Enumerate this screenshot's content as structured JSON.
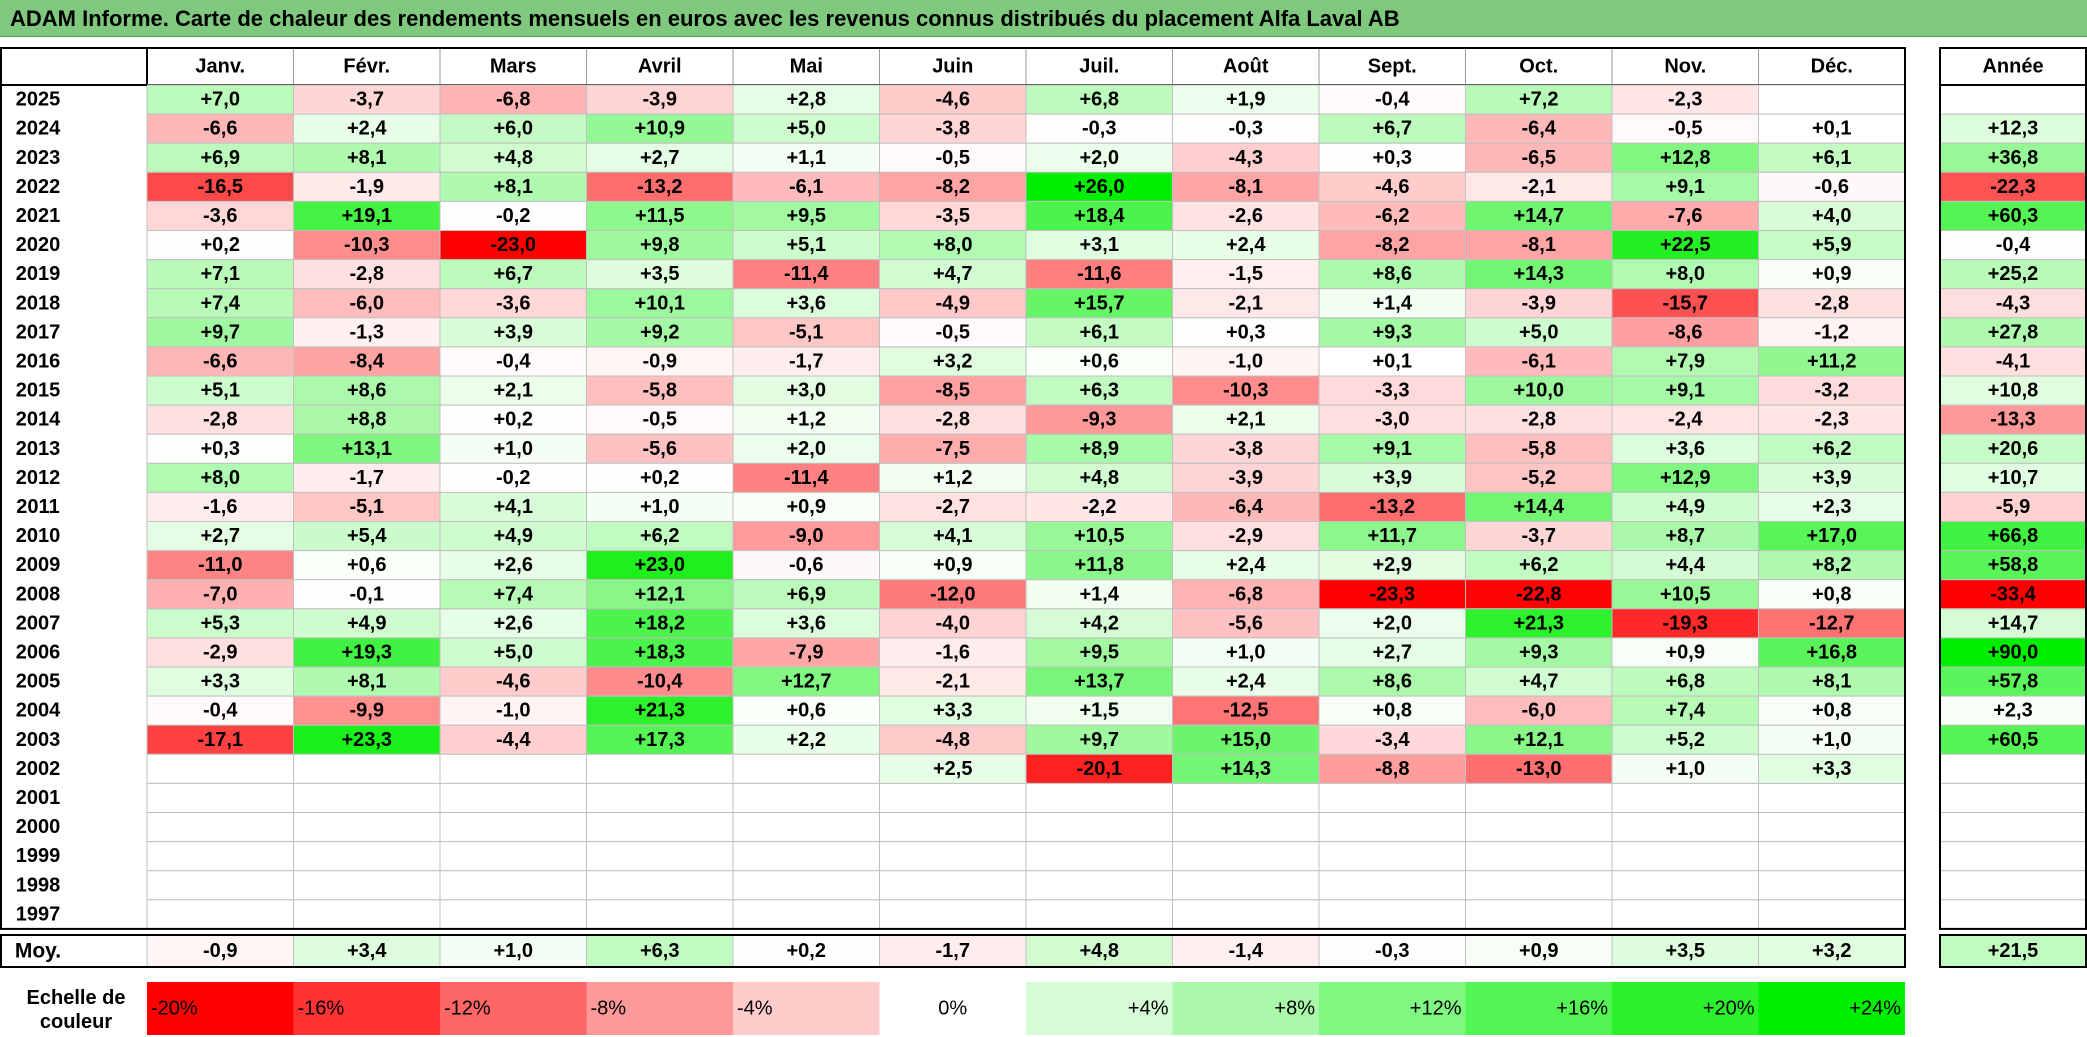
{
  "title": "ADAM Informe. Carte de chaleur des rendements mensuels en euros avec les revenus connus distribués du placement Alfa Laval AB",
  "chart_data": {
    "type": "heatmap",
    "title": "ADAM Informe. Carte de chaleur des rendements mensuels en euros avec les revenus connus distribués du placement Alfa Laval AB",
    "months": [
      "Janv.",
      "Févr.",
      "Mars",
      "Avril",
      "Mai",
      "Juin",
      "Juil.",
      "Août",
      "Sept.",
      "Oct.",
      "Nov.",
      "Déc."
    ],
    "year_header": "Année",
    "rows": [
      {
        "year": "2025",
        "values": [
          "+7,0",
          "-3,7",
          "-6,8",
          "-3,9",
          "+2,8",
          "-4,6",
          "+6,8",
          "+1,9",
          "-0,4",
          "+7,2",
          "-2,3",
          ""
        ],
        "annual": ""
      },
      {
        "year": "2024",
        "values": [
          "-6,6",
          "+2,4",
          "+6,0",
          "+10,9",
          "+5,0",
          "-3,8",
          "-0,3",
          "-0,3",
          "+6,7",
          "-6,4",
          "-0,5",
          "+0,1"
        ],
        "annual": "+12,3"
      },
      {
        "year": "2023",
        "values": [
          "+6,9",
          "+8,1",
          "+4,8",
          "+2,7",
          "+1,1",
          "-0,5",
          "+2,0",
          "-4,3",
          "+0,3",
          "-6,5",
          "+12,8",
          "+6,1"
        ],
        "annual": "+36,8"
      },
      {
        "year": "2022",
        "values": [
          "-16,5",
          "-1,9",
          "+8,1",
          "-13,2",
          "-6,1",
          "-8,2",
          "+26,0",
          "-8,1",
          "-4,6",
          "-2,1",
          "+9,1",
          "-0,6"
        ],
        "annual": "-22,3"
      },
      {
        "year": "2021",
        "values": [
          "-3,6",
          "+19,1",
          "-0,2",
          "+11,5",
          "+9,5",
          "-3,5",
          "+18,4",
          "-2,6",
          "-6,2",
          "+14,7",
          "-7,6",
          "+4,0"
        ],
        "annual": "+60,3"
      },
      {
        "year": "2020",
        "values": [
          "+0,2",
          "-10,3",
          "-23,0",
          "+9,8",
          "+5,1",
          "+8,0",
          "+3,1",
          "+2,4",
          "-8,2",
          "-8,1",
          "+22,5",
          "+5,9"
        ],
        "annual": "-0,4"
      },
      {
        "year": "2019",
        "values": [
          "+7,1",
          "-2,8",
          "+6,7",
          "+3,5",
          "-11,4",
          "+4,7",
          "-11,6",
          "-1,5",
          "+8,6",
          "+14,3",
          "+8,0",
          "+0,9"
        ],
        "annual": "+25,2"
      },
      {
        "year": "2018",
        "values": [
          "+7,4",
          "-6,0",
          "-3,6",
          "+10,1",
          "+3,6",
          "-4,9",
          "+15,7",
          "-2,1",
          "+1,4",
          "-3,9",
          "-15,7",
          "-2,8"
        ],
        "annual": "-4,3"
      },
      {
        "year": "2017",
        "values": [
          "+9,7",
          "-1,3",
          "+3,9",
          "+9,2",
          "-5,1",
          "-0,5",
          "+6,1",
          "+0,3",
          "+9,3",
          "+5,0",
          "-8,6",
          "-1,2"
        ],
        "annual": "+27,8"
      },
      {
        "year": "2016",
        "values": [
          "-6,6",
          "-8,4",
          "-0,4",
          "-0,9",
          "-1,7",
          "+3,2",
          "+0,6",
          "-1,0",
          "+0,1",
          "-6,1",
          "+7,9",
          "+11,2"
        ],
        "annual": "-4,1"
      },
      {
        "year": "2015",
        "values": [
          "+5,1",
          "+8,6",
          "+2,1",
          "-5,8",
          "+3,0",
          "-8,5",
          "+6,3",
          "-10,3",
          "-3,3",
          "+10,0",
          "+9,1",
          "-3,2"
        ],
        "annual": "+10,8"
      },
      {
        "year": "2014",
        "values": [
          "-2,8",
          "+8,8",
          "+0,2",
          "-0,5",
          "+1,2",
          "-2,8",
          "-9,3",
          "+2,1",
          "-3,0",
          "-2,8",
          "-2,4",
          "-2,3"
        ],
        "annual": "-13,3"
      },
      {
        "year": "2013",
        "values": [
          "+0,3",
          "+13,1",
          "+1,0",
          "-5,6",
          "+2,0",
          "-7,5",
          "+8,9",
          "-3,8",
          "+9,1",
          "-5,8",
          "+3,6",
          "+6,2"
        ],
        "annual": "+20,6"
      },
      {
        "year": "2012",
        "values": [
          "+8,0",
          "-1,7",
          "-0,2",
          "+0,2",
          "-11,4",
          "+1,2",
          "+4,8",
          "-3,9",
          "+3,9",
          "-5,2",
          "+12,9",
          "+3,9"
        ],
        "annual": "+10,7"
      },
      {
        "year": "2011",
        "values": [
          "-1,6",
          "-5,1",
          "+4,1",
          "+1,0",
          "+0,9",
          "-2,7",
          "-2,2",
          "-6,4",
          "-13,2",
          "+14,4",
          "+4,9",
          "+2,3"
        ],
        "annual": "-5,9"
      },
      {
        "year": "2010",
        "values": [
          "+2,7",
          "+5,4",
          "+4,9",
          "+6,2",
          "-9,0",
          "+4,1",
          "+10,5",
          "-2,9",
          "+11,7",
          "-3,7",
          "+8,7",
          "+17,0"
        ],
        "annual": "+66,8"
      },
      {
        "year": "2009",
        "values": [
          "-11,0",
          "+0,6",
          "+2,6",
          "+23,0",
          "-0,6",
          "+0,9",
          "+11,8",
          "+2,4",
          "+2,9",
          "+6,2",
          "+4,4",
          "+8,2"
        ],
        "annual": "+58,8"
      },
      {
        "year": "2008",
        "values": [
          "-7,0",
          "-0,1",
          "+7,4",
          "+12,1",
          "+6,9",
          "-12,0",
          "+1,4",
          "-6,8",
          "-23,3",
          "-22,8",
          "+10,5",
          "+0,8"
        ],
        "annual": "-33,4"
      },
      {
        "year": "2007",
        "values": [
          "+5,3",
          "+4,9",
          "+2,6",
          "+18,2",
          "+3,6",
          "-4,0",
          "+4,2",
          "-5,6",
          "+2,0",
          "+21,3",
          "-19,3",
          "-12,7"
        ],
        "annual": "+14,7"
      },
      {
        "year": "2006",
        "values": [
          "-2,9",
          "+19,3",
          "+5,0",
          "+18,3",
          "-7,9",
          "-1,6",
          "+9,5",
          "+1,0",
          "+2,7",
          "+9,3",
          "+0,9",
          "+16,8"
        ],
        "annual": "+90,0"
      },
      {
        "year": "2005",
        "values": [
          "+3,3",
          "+8,1",
          "-4,6",
          "-10,4",
          "+12,7",
          "-2,1",
          "+13,7",
          "+2,4",
          "+8,6",
          "+4,7",
          "+6,8",
          "+8,1"
        ],
        "annual": "+57,8"
      },
      {
        "year": "2004",
        "values": [
          "-0,4",
          "-9,9",
          "-1,0",
          "+21,3",
          "+0,6",
          "+3,3",
          "+1,5",
          "-12,5",
          "+0,8",
          "-6,0",
          "+7,4",
          "+0,8"
        ],
        "annual": "+2,3"
      },
      {
        "year": "2003",
        "values": [
          "-17,1",
          "+23,3",
          "-4,4",
          "+17,3",
          "+2,2",
          "-4,8",
          "+9,7",
          "+15,0",
          "-3,4",
          "+12,1",
          "+5,2",
          "+1,0"
        ],
        "annual": "+60,5"
      },
      {
        "year": "2002",
        "values": [
          "",
          "",
          "",
          "",
          "",
          "+2,5",
          "-20,1",
          "+14,3",
          "-8,8",
          "-13,0",
          "+1,0",
          "+3,3"
        ],
        "annual": ""
      },
      {
        "year": "2001",
        "values": [
          "",
          "",
          "",
          "",
          "",
          "",
          "",
          "",
          "",
          "",
          "",
          ""
        ],
        "annual": ""
      },
      {
        "year": "2000",
        "values": [
          "",
          "",
          "",
          "",
          "",
          "",
          "",
          "",
          "",
          "",
          "",
          ""
        ],
        "annual": ""
      },
      {
        "year": "1999",
        "values": [
          "",
          "",
          "",
          "",
          "",
          "",
          "",
          "",
          "",
          "",
          "",
          ""
        ],
        "annual": ""
      },
      {
        "year": "1998",
        "values": [
          "",
          "",
          "",
          "",
          "",
          "",
          "",
          "",
          "",
          "",
          "",
          ""
        ],
        "annual": ""
      },
      {
        "year": "1997",
        "values": [
          "",
          "",
          "",
          "",
          "",
          "",
          "",
          "",
          "",
          "",
          "",
          ""
        ],
        "annual": ""
      }
    ],
    "average": {
      "label": "Moy.",
      "values": [
        "-0,9",
        "+3,4",
        "+1,0",
        "+6,3",
        "+0,2",
        "-1,7",
        "+4,8",
        "-1,4",
        "-0,3",
        "+0,9",
        "+3,5",
        "+3,2"
      ],
      "annual": "+21,5"
    },
    "scale": {
      "label_line1": "Echelle de",
      "label_line2": "couleur",
      "steps": [
        "-20%",
        "-16%",
        "-12%",
        "-8%",
        "-4%",
        "0%",
        "+4%",
        "+8%",
        "+12%",
        "+16%",
        "+20%",
        "+24%"
      ]
    },
    "colors": {
      "negative_max": "#ff0000",
      "neutral": "#ffffff",
      "positive_max": "#00ee00",
      "title_bar": "#7fc97f"
    }
  }
}
